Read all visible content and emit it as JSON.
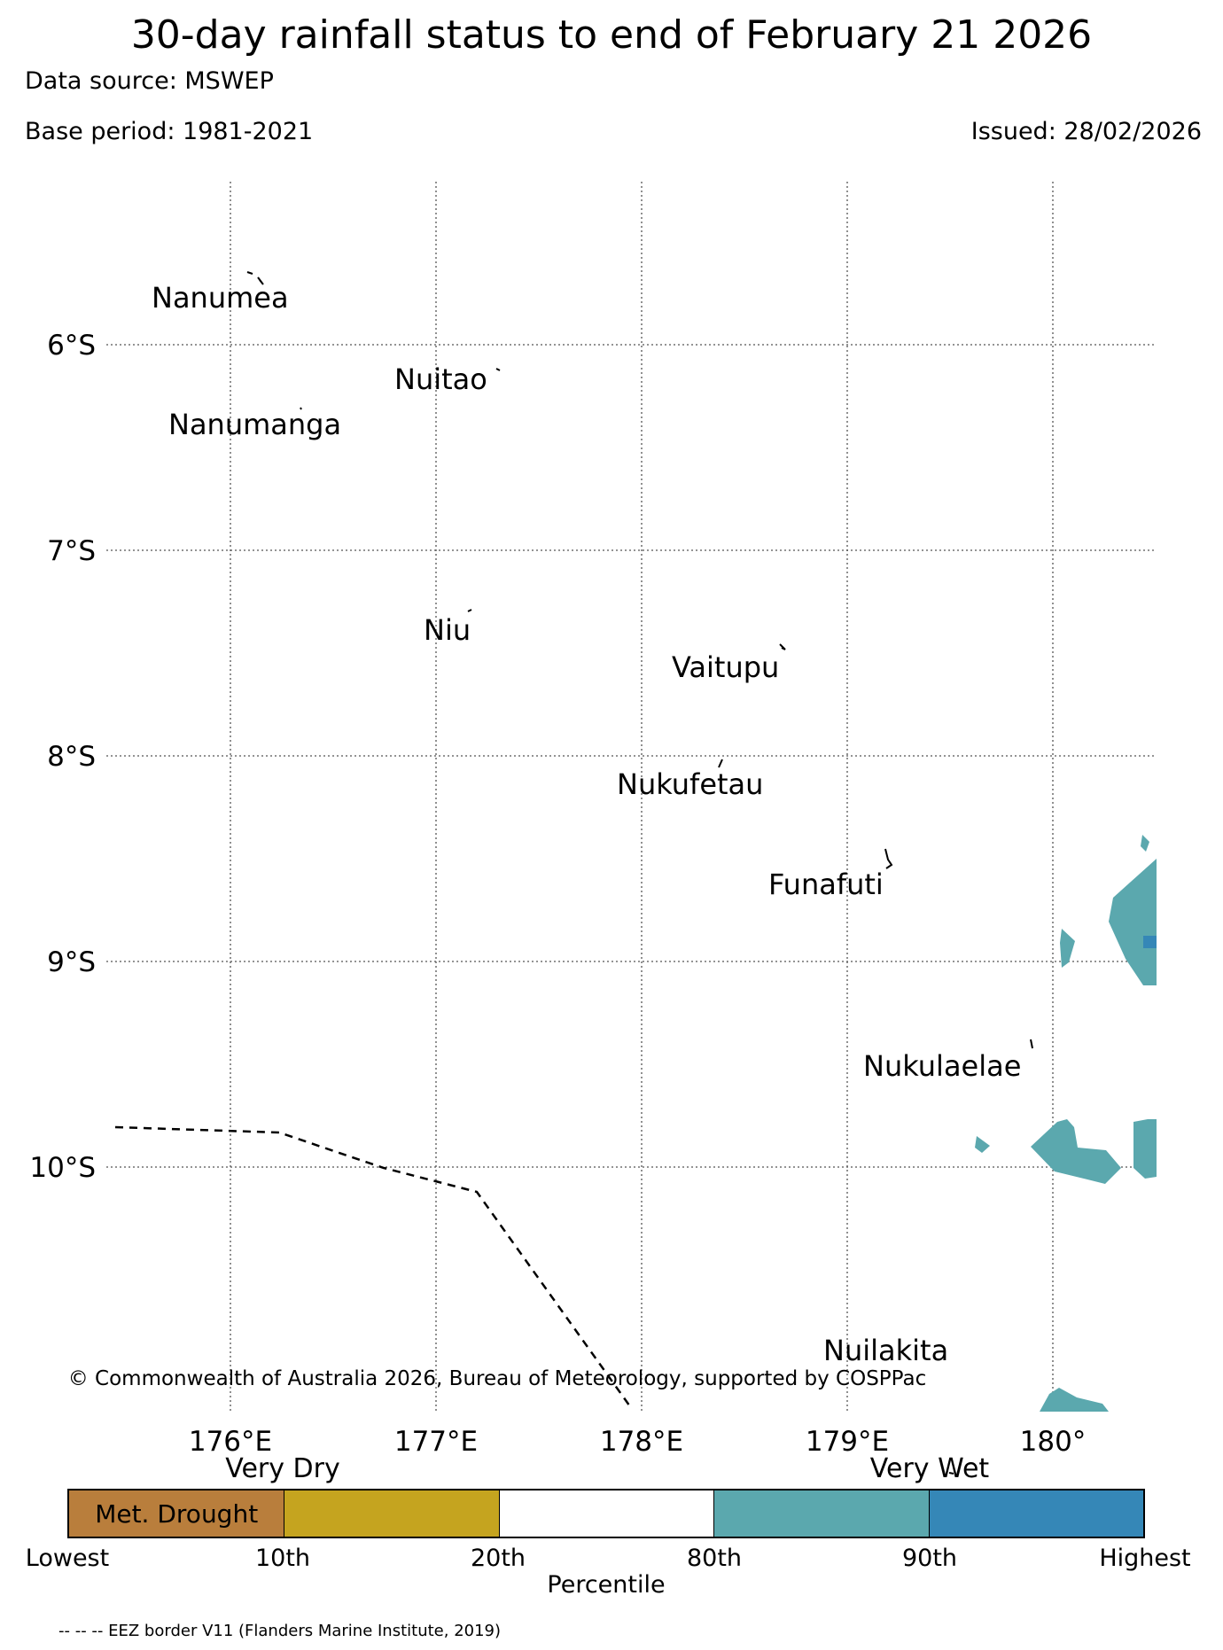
{
  "title": "30-day rainfall status to end of February 21 2026",
  "data_source": "Data source: MSWEP",
  "base_period": "Base period: 1981-2021",
  "issued": "Issued: 28/02/2026",
  "map": {
    "lat_labels": [
      "6°S",
      "7°S",
      "8°S",
      "9°S",
      "10°S"
    ],
    "lon_labels": [
      "176°E",
      "177°E",
      "178°E",
      "179°E",
      "180°"
    ],
    "islands": [
      "Nanumea",
      "Nuitao",
      "Nanumanga",
      "Niu",
      "Vaitupu",
      "Nukufetau",
      "Funafuti",
      "Nukulaelae",
      "Nuilakita"
    ],
    "copyright": "© Commonwealth of Australia 2026, Bureau of Meteorology, supported by COSPPac",
    "colors": {
      "wet80": "#5ba8ae",
      "wet90": "#3587b7",
      "grid": "#555555"
    }
  },
  "colorbar": {
    "very_dry": "Very Dry",
    "very_wet": "Very Wet",
    "segments": [
      {
        "label": "Met. Drought",
        "color": "#b97e3c"
      },
      {
        "label": "",
        "color": "#c5a41f"
      },
      {
        "label": "",
        "color": "#ffffff"
      },
      {
        "label": "",
        "color": "#5ba8ae"
      },
      {
        "label": "",
        "color": "#3587b7"
      }
    ],
    "ticks": [
      "Lowest",
      "10th",
      "20th",
      "80th",
      "90th",
      "Highest"
    ],
    "axis_label": "Percentile"
  },
  "eez_note": "-- -- -- EEZ border V11 (Flanders Marine Institute, 2019)"
}
